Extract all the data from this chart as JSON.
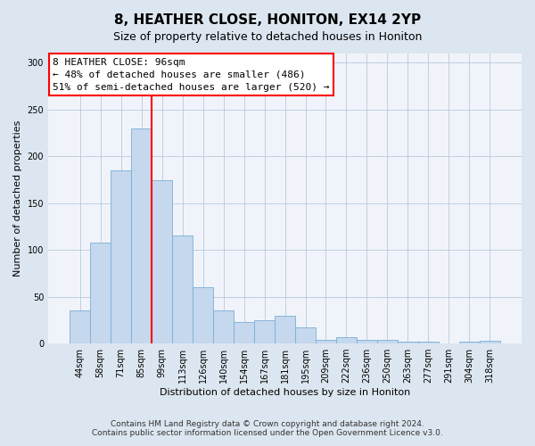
{
  "title1": "8, HEATHER CLOSE, HONITON, EX14 2YP",
  "title2": "Size of property relative to detached houses in Honiton",
  "xlabel": "Distribution of detached houses by size in Honiton",
  "ylabel": "Number of detached properties",
  "categories": [
    "44sqm",
    "58sqm",
    "71sqm",
    "85sqm",
    "99sqm",
    "113sqm",
    "126sqm",
    "140sqm",
    "154sqm",
    "167sqm",
    "181sqm",
    "195sqm",
    "209sqm",
    "222sqm",
    "236sqm",
    "250sqm",
    "263sqm",
    "277sqm",
    "291sqm",
    "304sqm",
    "318sqm"
  ],
  "values": [
    35,
    108,
    185,
    230,
    175,
    115,
    60,
    35,
    23,
    25,
    30,
    17,
    4,
    7,
    4,
    4,
    2,
    2,
    0,
    2,
    3
  ],
  "bar_color": "#c5d8ee",
  "bar_edge_color": "#7aafd4",
  "annotation_text_line1": "8 HEATHER CLOSE: 96sqm",
  "annotation_text_line2": "← 48% of detached houses are smaller (486)",
  "annotation_text_line3": "51% of semi-detached houses are larger (520) →",
  "vline_color": "red",
  "vline_x": 3.5,
  "ylim": [
    0,
    310
  ],
  "yticks": [
    0,
    50,
    100,
    150,
    200,
    250,
    300
  ],
  "footer1": "Contains HM Land Registry data © Crown copyright and database right 2024.",
  "footer2": "Contains public sector information licensed under the Open Government Licence v3.0.",
  "bg_color": "#dce6f0",
  "plot_bg_color": "#f0f4fa",
  "grid_color": "#b8c8dc",
  "title1_fontsize": 11,
  "title2_fontsize": 9,
  "xlabel_fontsize": 8,
  "ylabel_fontsize": 8,
  "tick_fontsize": 7,
  "annotation_fontsize": 8,
  "footer_fontsize": 6.5
}
